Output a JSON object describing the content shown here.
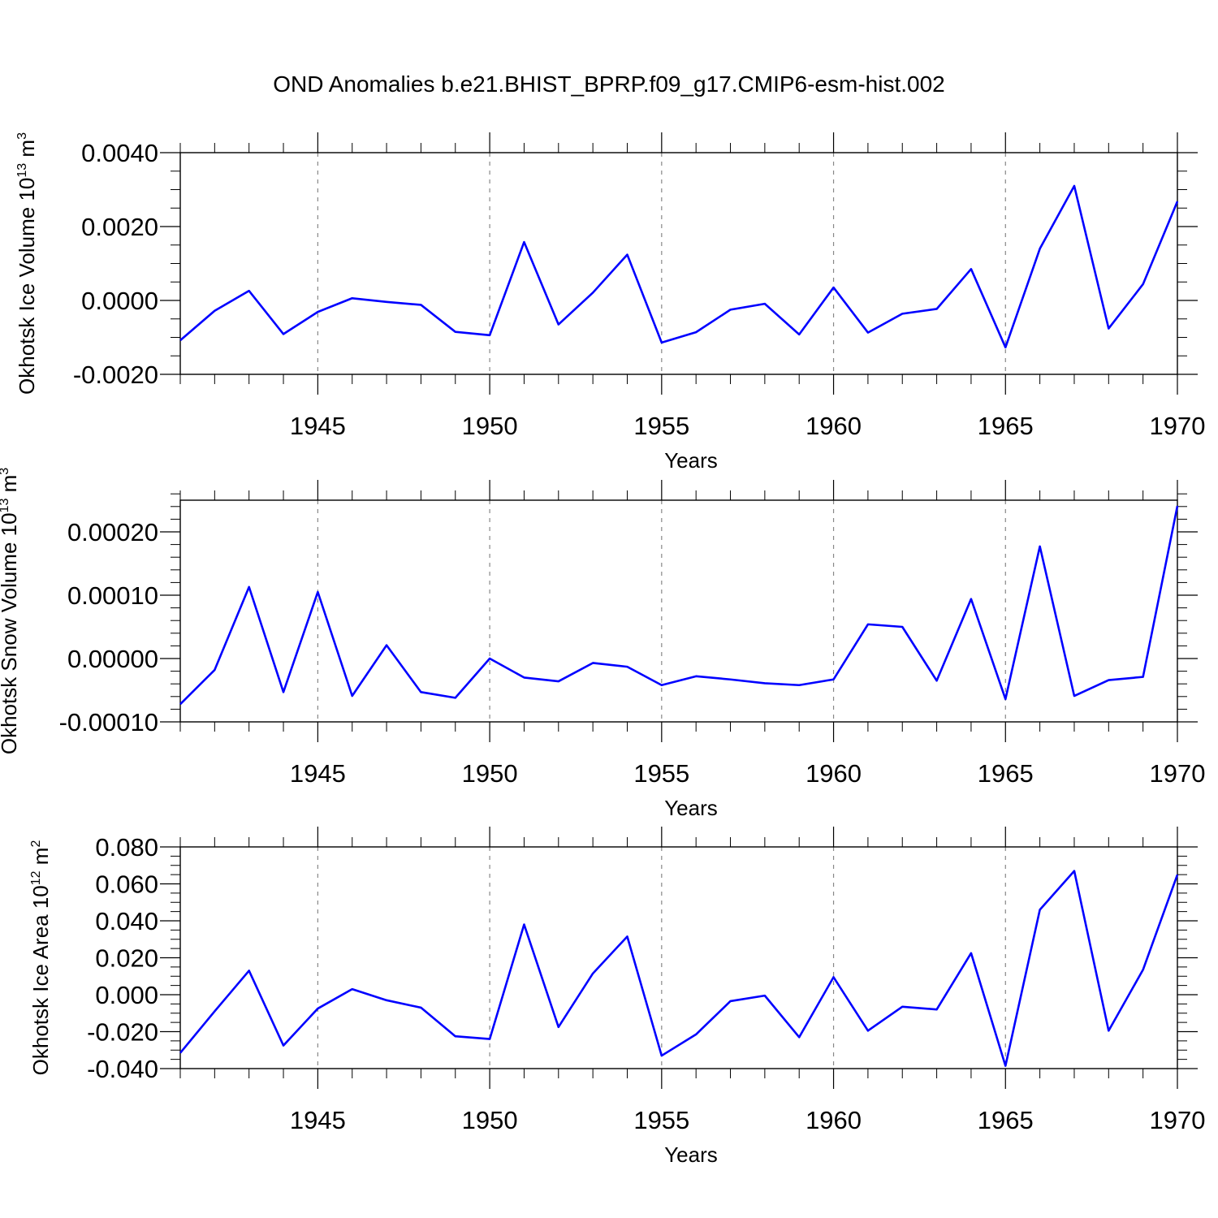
{
  "title": "OND Anomalies b.e21.BHIST_BPRP.f09_g17.CMIP6-esm-hist.002",
  "colors": {
    "line": "#0000ff",
    "grid": "#888888",
    "axis": "#000000"
  },
  "chart_data": [
    {
      "type": "line",
      "ylabel": {
        "base": "Okhotsk Ice Volume 10",
        "exp": "13",
        "unit": " m",
        "unit_exp": "3"
      },
      "xlabel": "Years",
      "x": [
        1941,
        1942,
        1943,
        1944,
        1945,
        1946,
        1947,
        1948,
        1949,
        1950,
        1951,
        1952,
        1953,
        1954,
        1955,
        1956,
        1957,
        1958,
        1959,
        1960,
        1961,
        1962,
        1963,
        1964,
        1965,
        1966,
        1967,
        1968,
        1969,
        1970
      ],
      "values": [
        -0.00108,
        -0.00028,
        0.00026,
        -0.00091,
        -0.00031,
        6e-05,
        -4e-05,
        -0.00012,
        -0.00085,
        -0.00094,
        0.00158,
        -0.00065,
        0.00021,
        0.00124,
        -0.00114,
        -0.00086,
        -0.00025,
        -9e-05,
        -0.00092,
        0.00035,
        -0.00087,
        -0.00036,
        -0.00023,
        0.00085,
        -0.00127,
        0.0014,
        0.0031,
        -0.00076,
        0.00044,
        0.00268
      ],
      "xlim": [
        1941,
        1970
      ],
      "ylim": [
        -0.002,
        0.004
      ],
      "x_ticks": [
        1945,
        1950,
        1955,
        1960,
        1965,
        1970
      ],
      "x_tick_labels": [
        "1945",
        "1950",
        "1955",
        "1960",
        "1965",
        "1970"
      ],
      "y_ticks": [
        -0.002,
        0.0,
        0.002,
        0.004
      ],
      "y_tick_labels": [
        "-0.0020",
        "0.0000",
        "0.0020",
        "0.0040"
      ],
      "y_minor_step": 0.0005,
      "grid": "vertical-dashed"
    },
    {
      "type": "line",
      "ylabel": {
        "base": "Okhotsk Snow Volume 10",
        "exp": "13",
        "unit": " m",
        "unit_exp": "3"
      },
      "xlabel": "Years",
      "x": [
        1941,
        1942,
        1943,
        1944,
        1945,
        1946,
        1947,
        1948,
        1949,
        1950,
        1951,
        1952,
        1953,
        1954,
        1955,
        1956,
        1957,
        1958,
        1959,
        1960,
        1961,
        1962,
        1963,
        1964,
        1965,
        1966,
        1967,
        1968,
        1969,
        1970
      ],
      "values": [
        -7.2e-05,
        -1.8e-05,
        0.000113,
        -5.3e-05,
        0.000105,
        -5.9e-05,
        2.1e-05,
        -5.3e-05,
        -6.2e-05,
        0.0,
        -3e-05,
        -3.6e-05,
        -7e-06,
        -1.3e-05,
        -4.2e-05,
        -2.8e-05,
        -3.3e-05,
        -3.9e-05,
        -4.2e-05,
        -3.3e-05,
        5.4e-05,
        5e-05,
        -3.5e-05,
        9.4e-05,
        -6.4e-05,
        0.000177,
        -5.9e-05,
        -3.4e-05,
        -2.9e-05,
        0.000241
      ],
      "xlim": [
        1941,
        1970
      ],
      "ylim": [
        -0.0001,
        0.00025
      ],
      "x_ticks": [
        1945,
        1950,
        1955,
        1960,
        1965,
        1970
      ],
      "x_tick_labels": [
        "1945",
        "1950",
        "1955",
        "1960",
        "1965",
        "1970"
      ],
      "y_ticks": [
        -0.0001,
        0.0,
        0.0001,
        0.0002
      ],
      "y_tick_labels": [
        "-0.00010",
        "0.00000",
        "0.00010",
        "0.00020"
      ],
      "y_minor_step": 2e-05,
      "grid": "vertical-dashed"
    },
    {
      "type": "line",
      "ylabel": {
        "base": "Okhotsk Ice Area 10",
        "exp": "12",
        "unit": " m",
        "unit_exp": "2"
      },
      "xlabel": "Years",
      "x": [
        1941,
        1942,
        1943,
        1944,
        1945,
        1946,
        1947,
        1948,
        1949,
        1950,
        1951,
        1952,
        1953,
        1954,
        1955,
        1956,
        1957,
        1958,
        1959,
        1960,
        1961,
        1962,
        1963,
        1964,
        1965,
        1966,
        1967,
        1968,
        1969,
        1970
      ],
      "values": [
        -0.0315,
        -0.009,
        0.013,
        -0.0275,
        -0.0075,
        0.003,
        -0.003,
        -0.007,
        -0.0225,
        -0.024,
        0.038,
        -0.0175,
        0.0115,
        0.0315,
        -0.033,
        -0.0215,
        -0.0035,
        -0.0005,
        -0.023,
        0.0095,
        -0.0195,
        -0.0065,
        -0.008,
        0.0225,
        -0.0385,
        0.046,
        0.067,
        -0.0195,
        0.0135,
        0.065
      ],
      "xlim": [
        1941,
        1970
      ],
      "ylim": [
        -0.04,
        0.08
      ],
      "x_ticks": [
        1945,
        1950,
        1955,
        1960,
        1965,
        1970
      ],
      "x_tick_labels": [
        "1945",
        "1950",
        "1955",
        "1960",
        "1965",
        "1970"
      ],
      "y_ticks": [
        -0.04,
        -0.02,
        0.0,
        0.02,
        0.04,
        0.06,
        0.08
      ],
      "y_tick_labels": [
        "-0.040",
        "-0.020",
        "0.000",
        "0.020",
        "0.040",
        "0.060",
        "0.080"
      ],
      "y_minor_step": 0.005,
      "grid": "vertical-dashed"
    }
  ]
}
